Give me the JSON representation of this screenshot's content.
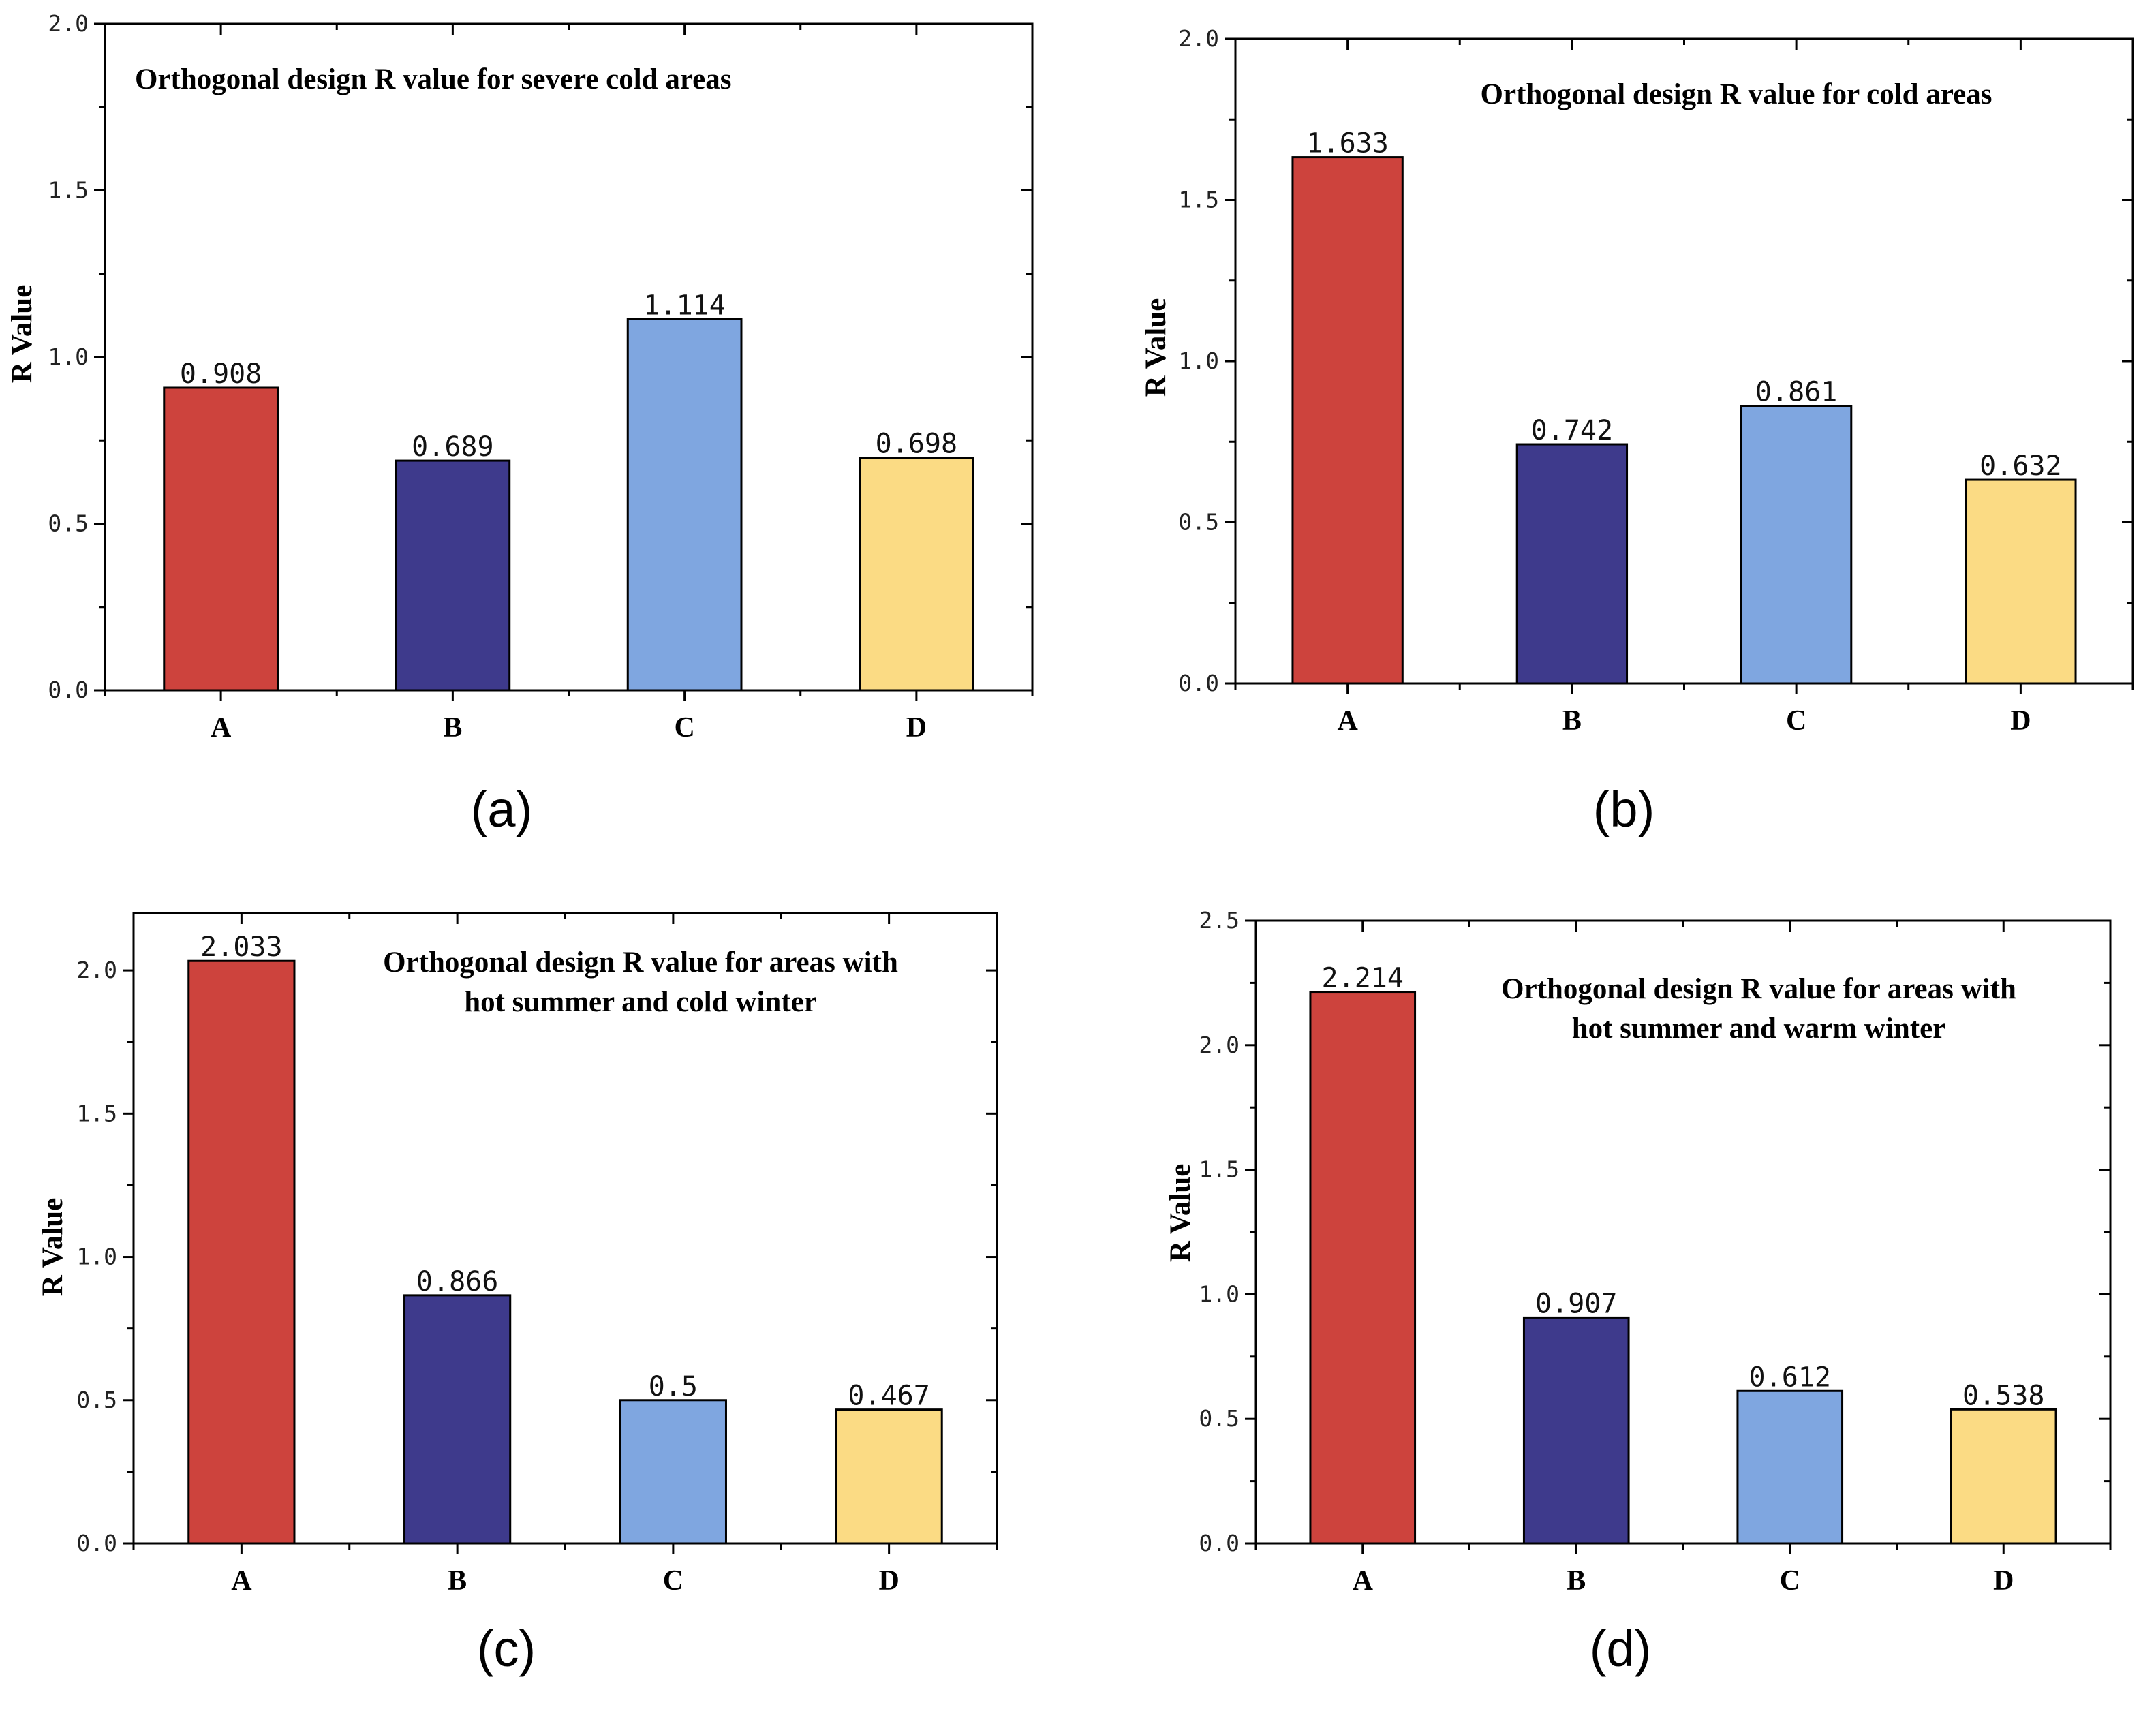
{
  "chart_data": [
    {
      "type": "bar",
      "panel_label": "(a)",
      "title": [
        "Orthogonal design R value for severe cold areas"
      ],
      "xlabel": "",
      "ylabel": "R Value",
      "categories": [
        "A",
        "B",
        "C",
        "D"
      ],
      "values": [
        0.908,
        0.689,
        1.114,
        0.698
      ],
      "value_labels": [
        "0.908",
        "0.689",
        "1.114",
        "0.698"
      ],
      "ylim": [
        0,
        2.0
      ],
      "yticks": [
        "0.0",
        "0.5",
        "1.0",
        "1.5",
        "2.0"
      ],
      "colors": [
        "#cd433d",
        "#3e3a8c",
        "#7fa6e0",
        "#fbdb84"
      ],
      "grid": false
    },
    {
      "type": "bar",
      "panel_label": "(b)",
      "title": [
        "Orthogonal design R value for cold areas"
      ],
      "xlabel": "",
      "ylabel": "R Value",
      "categories": [
        "A",
        "B",
        "C",
        "D"
      ],
      "values": [
        1.633,
        0.742,
        0.861,
        0.632
      ],
      "value_labels": [
        "1.633",
        "0.742",
        "0.861",
        "0.632"
      ],
      "ylim": [
        0,
        2.0
      ],
      "yticks": [
        "0.0",
        "0.5",
        "1.0",
        "1.5",
        "2.0"
      ],
      "colors": [
        "#cd433d",
        "#3e3a8c",
        "#7fa6e0",
        "#fbdb84"
      ],
      "grid": false
    },
    {
      "type": "bar",
      "panel_label": "(c)",
      "title": [
        "Orthogonal design R value for areas with",
        "hot summer and cold winter"
      ],
      "xlabel": "",
      "ylabel": "R Value",
      "categories": [
        "A",
        "B",
        "C",
        "D"
      ],
      "values": [
        2.033,
        0.866,
        0.5,
        0.467
      ],
      "value_labels": [
        "2.033",
        "0.866",
        "0.5",
        "0.467"
      ],
      "ylim": [
        0,
        2.2
      ],
      "yticks": [
        "0.0",
        "0.5",
        "1.0",
        "1.5",
        "2.0"
      ],
      "colors": [
        "#cd433d",
        "#3e3a8c",
        "#7fa6e0",
        "#fbdb84"
      ],
      "grid": false
    },
    {
      "type": "bar",
      "panel_label": "(d)",
      "title": [
        "Orthogonal design R value for areas with",
        "hot summer and warm winter"
      ],
      "xlabel": "",
      "ylabel": "R Value",
      "categories": [
        "A",
        "B",
        "C",
        "D"
      ],
      "values": [
        2.214,
        0.907,
        0.612,
        0.538
      ],
      "value_labels": [
        "2.214",
        "0.907",
        "0.612",
        "0.538"
      ],
      "ylim": [
        0,
        2.5
      ],
      "yticks": [
        "0.0",
        "0.5",
        "1.0",
        "1.5",
        "2.0",
        "2.5"
      ],
      "colors": [
        "#cd433d",
        "#3e3a8c",
        "#7fa6e0",
        "#fbdb84"
      ],
      "grid": false
    }
  ]
}
